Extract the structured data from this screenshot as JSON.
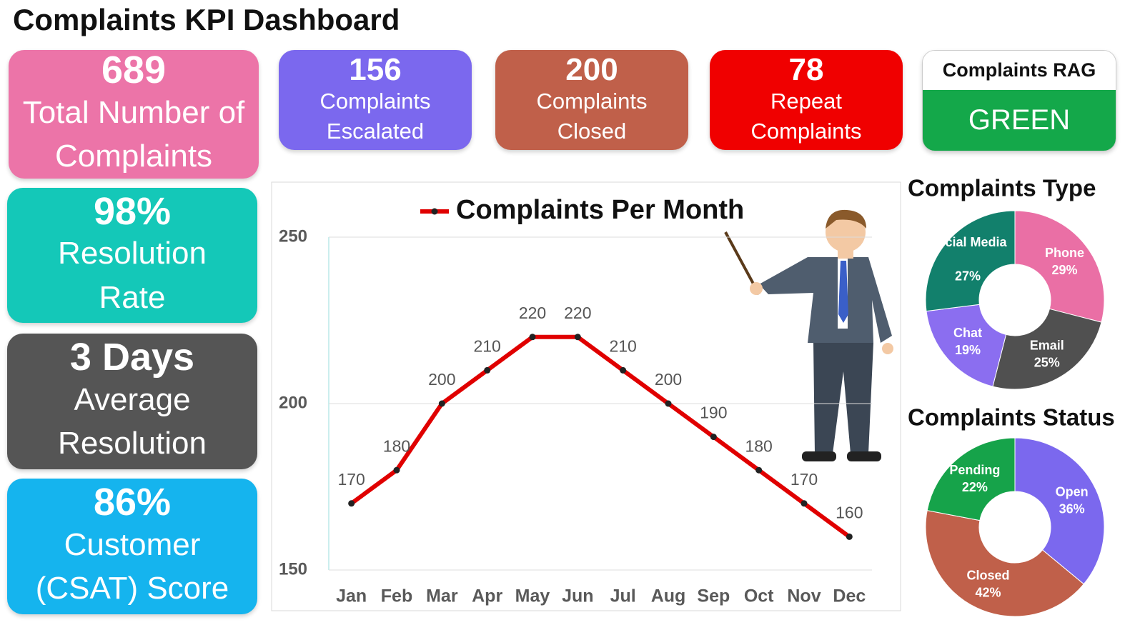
{
  "title": "Complaints KPI Dashboard",
  "kpis": [
    {
      "value": "689",
      "label": "Total Number of Complaints"
    },
    {
      "value": "98%",
      "label": "Resolution Rate"
    },
    {
      "value": "3 Days",
      "label": "Average Resolution"
    },
    {
      "value": "86%",
      "label": "Customer (CSAT) Score"
    },
    {
      "value": "156",
      "label": "Complaints Escalated"
    },
    {
      "value": "200",
      "label": "Complaints Closed"
    },
    {
      "value": "78",
      "label": "Repeat Complaints"
    }
  ],
  "rag": {
    "title": "Complaints RAG",
    "status": "GREEN"
  },
  "chart_data": [
    {
      "type": "line",
      "categories": [
        "Jan",
        "Feb",
        "Mar",
        "Apr",
        "May",
        "Jun",
        "Jul",
        "Aug",
        "Sep",
        "Oct",
        "Nov",
        "Dec"
      ],
      "series": [
        {
          "name": "Complaints Per Month",
          "color": "#e00000",
          "values": [
            170,
            180,
            200,
            210,
            220,
            220,
            210,
            200,
            190,
            180,
            170,
            160
          ]
        }
      ],
      "ylim": [
        150,
        250
      ],
      "yticks": [
        150,
        200,
        250
      ],
      "grid": true,
      "data_labels": true
    },
    {
      "type": "donut",
      "title": "Complaints Type",
      "categories": [
        "Phone",
        "Email",
        "Chat",
        "Social Media"
      ],
      "values": [
        29,
        25,
        19,
        27
      ],
      "value_labels": [
        "29%",
        "25%",
        "19%",
        "27%"
      ],
      "colors": [
        "#ea6fa5",
        "#505050",
        "#8b6ef0",
        "#12806c"
      ]
    },
    {
      "type": "donut",
      "title": "Complaints Status",
      "categories": [
        "Open",
        "Closed",
        "Pending"
      ],
      "values": [
        36,
        42,
        22
      ],
      "value_labels": [
        "36%",
        "42%",
        "22%"
      ],
      "colors": [
        "#7b68ee",
        "#c0604a",
        "#16a34a"
      ]
    }
  ]
}
